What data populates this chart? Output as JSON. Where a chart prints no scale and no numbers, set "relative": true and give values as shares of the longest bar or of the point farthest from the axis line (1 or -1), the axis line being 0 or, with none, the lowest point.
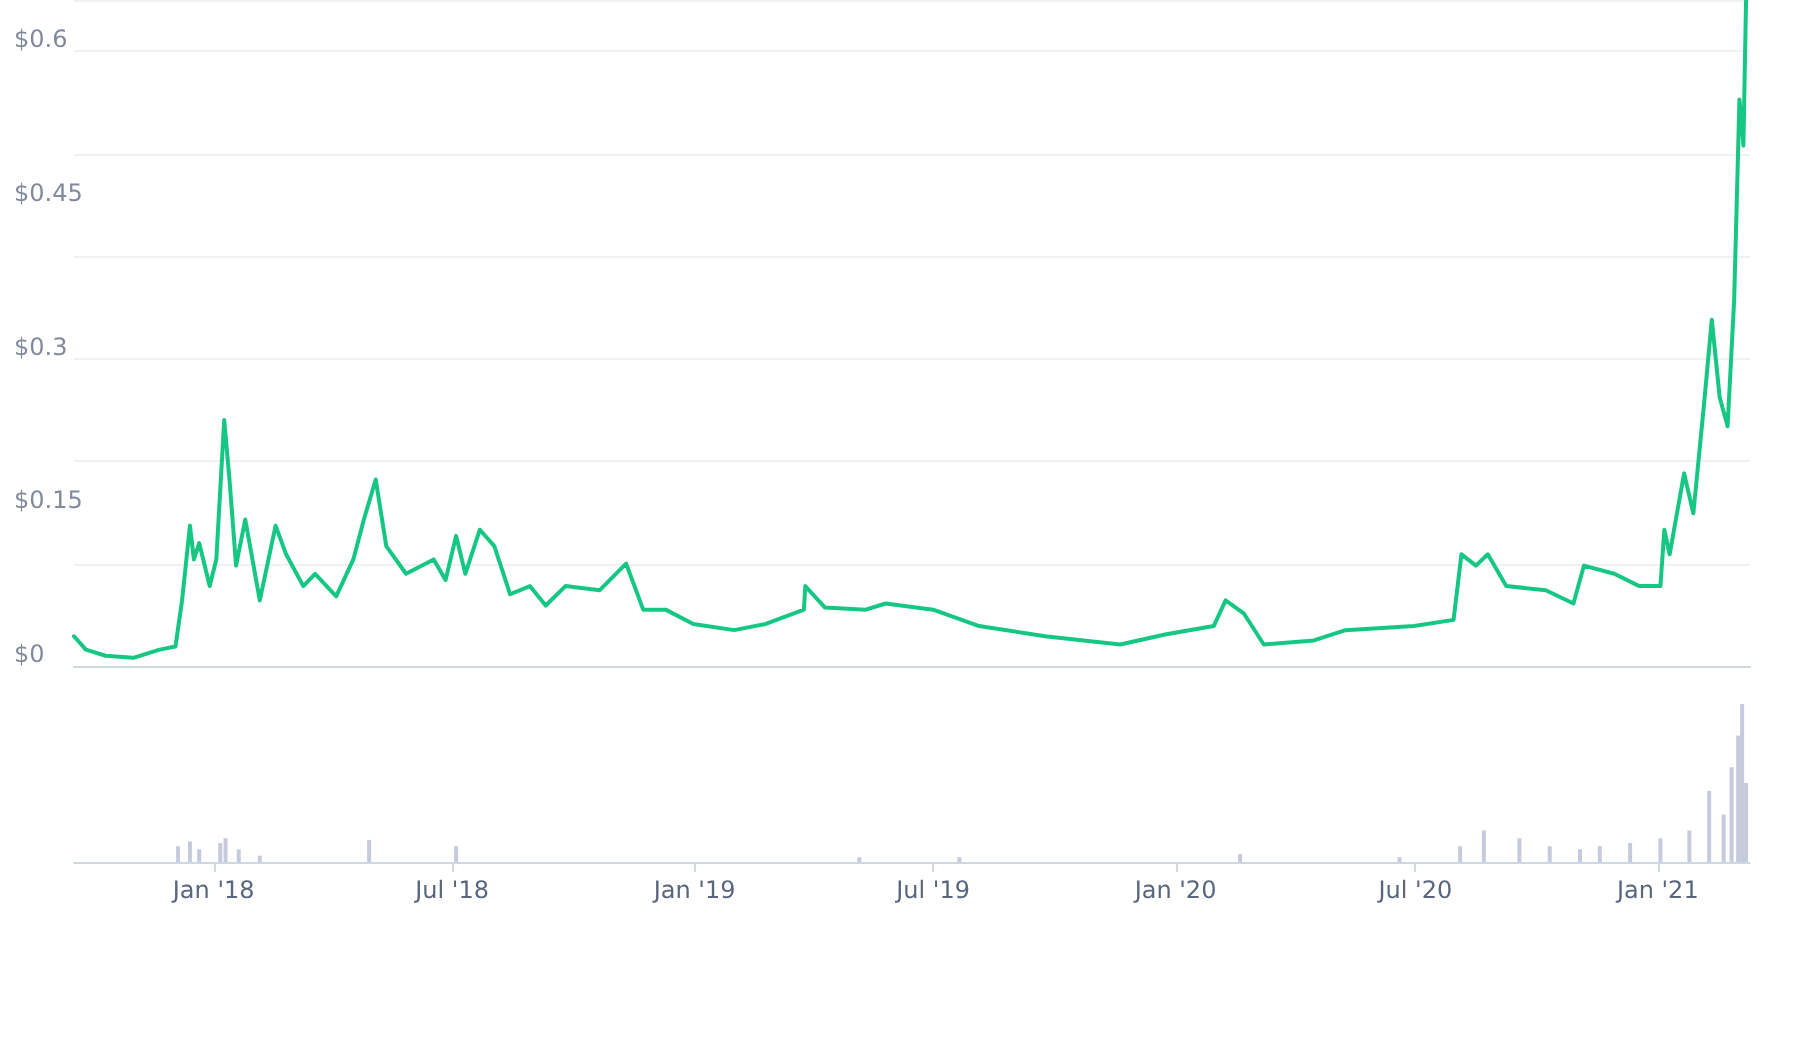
{
  "chart_data": [
    {
      "type": "line",
      "tick_labels": "y",
      "grid": "y",
      "marker": "none",
      "line_style": "solid",
      "x": [
        "2017-09-17",
        "2017-09-26",
        "2017-10-11",
        "2017-11-01",
        "2017-11-21",
        "2017-12-03",
        "2017-12-08",
        "2017-12-14",
        "2017-12-17",
        "2017-12-21",
        "2017-12-29",
        "2018-01-03",
        "2018-01-09",
        "2018-01-13",
        "2018-01-18",
        "2018-01-25",
        "2018-02-05",
        "2018-02-17",
        "2018-02-25",
        "2018-03-10",
        "2018-03-19",
        "2018-04-04",
        "2018-04-17",
        "2018-04-25",
        "2018-05-04",
        "2018-05-12",
        "2018-05-27",
        "2018-06-17",
        "2018-06-26",
        "2018-07-04",
        "2018-07-11",
        "2018-07-22",
        "2018-08-02",
        "2018-08-14",
        "2018-08-29",
        "2018-09-10",
        "2018-09-25",
        "2018-10-21",
        "2018-11-10",
        "2018-11-23",
        "2018-12-10",
        "2018-12-31",
        "2019-01-31",
        "2019-02-24",
        "2019-03-25",
        "2019-03-26",
        "2019-04-10",
        "2019-05-11",
        "2019-05-26",
        "2019-07-01",
        "2019-08-05",
        "2019-09-24",
        "2019-11-20",
        "2019-12-25",
        "2020-01-30",
        "2020-02-08",
        "2020-02-22",
        "2020-03-08",
        "2020-04-15",
        "2020-05-09",
        "2020-06-30",
        "2020-07-30",
        "2020-08-05",
        "2020-08-16",
        "2020-08-25",
        "2020-09-08",
        "2020-10-08",
        "2020-10-29",
        "2020-11-06",
        "2020-11-29",
        "2020-12-18",
        "2021-01-03",
        "2021-01-06",
        "2021-01-10",
        "2021-01-21",
        "2021-01-28",
        "2021-02-05",
        "2021-02-11",
        "2021-02-17",
        "2021-02-23",
        "2021-02-28",
        "2021-03-04",
        "2021-03-07",
        "2021-03-09"
      ],
      "series": [
        {
          "color": "#16c784",
          "values": [
            0.029,
            0.016,
            0.01,
            0.008,
            0.016,
            0.019,
            0.064,
            0.137,
            0.104,
            0.12,
            0.078,
            0.104,
            0.24,
            0.182,
            0.098,
            0.143,
            0.064,
            0.137,
            0.109,
            0.078,
            0.09,
            0.068,
            0.104,
            0.143,
            0.182,
            0.117,
            0.09,
            0.104,
            0.084,
            0.127,
            0.09,
            0.133,
            0.117,
            0.07,
            0.078,
            0.059,
            0.078,
            0.074,
            0.1,
            0.055,
            0.055,
            0.041,
            0.035,
            0.041,
            0.055,
            0.078,
            0.057,
            0.055,
            0.061,
            0.055,
            0.039,
            0.029,
            0.021,
            0.031,
            0.039,
            0.064,
            0.051,
            0.021,
            0.025,
            0.035,
            0.039,
            0.045,
            0.109,
            0.098,
            0.109,
            0.078,
            0.074,
            0.061,
            0.098,
            0.09,
            0.078,
            0.078,
            0.133,
            0.109,
            0.188,
            0.149,
            0.254,
            0.338,
            0.262,
            0.234,
            0.358,
            0.553,
            0.508,
            0.65
          ]
        }
      ],
      "xlim": [
        "2017-09-17",
        "2021-03-12"
      ],
      "ylim": [
        0,
        0.65
      ],
      "yticks": [
        {
          "value": 0,
          "label": "$0"
        },
        {
          "value": 0.15,
          "label": "$0.15"
        },
        {
          "value": 0.3,
          "label": "$0.3"
        },
        {
          "value": 0.45,
          "label": "$0.45"
        },
        {
          "value": 0.6,
          "label": "$0.6"
        }
      ]
    },
    {
      "type": "bar",
      "relative": true,
      "tick_labels": "x",
      "x": [
        "2017-12-05",
        "2017-12-14",
        "2017-12-21",
        "2018-01-06",
        "2018-01-10",
        "2018-01-20",
        "2018-02-05",
        "2018-04-29",
        "2018-07-04",
        "2018-10-21",
        "2019-05-06",
        "2019-06-21",
        "2019-07-21",
        "2020-02-19",
        "2020-06-19",
        "2020-08-04",
        "2020-08-22",
        "2020-09-18",
        "2020-10-11",
        "2020-11-03",
        "2020-11-18",
        "2020-12-11",
        "2021-01-03",
        "2021-01-25",
        "2021-02-09",
        "2021-02-20",
        "2021-02-26",
        "2021-03-03",
        "2021-03-06",
        "2021-03-09"
      ],
      "series": [
        {
          "color": "#c5cbdc",
          "values": [
            0.1,
            0.13,
            0.08,
            0.12,
            0.15,
            0.08,
            0.04,
            0.14,
            0.1,
            null,
            0.03,
            null,
            0.03,
            0.05,
            0.03,
            0.1,
            0.2,
            0.15,
            0.1,
            0.08,
            0.1,
            0.12,
            0.15,
            0.2,
            0.45,
            0.3,
            0.6,
            0.8,
            1,
            0.5
          ]
        }
      ],
      "xlim": [
        "2017-09-17",
        "2021-03-12"
      ],
      "xticks": [
        {
          "value": "2018-01-01",
          "label": "Jan '18"
        },
        {
          "value": "2018-07-01",
          "label": "Jul '18"
        },
        {
          "value": "2019-01-01",
          "label": "Jan '19"
        },
        {
          "value": "2019-07-01",
          "label": "Jul '19"
        },
        {
          "value": "2020-01-01",
          "label": "Jan '20"
        },
        {
          "value": "2020-07-01",
          "label": "Jul '20"
        },
        {
          "value": "2021-01-01",
          "label": "Jan '21"
        }
      ]
    }
  ]
}
